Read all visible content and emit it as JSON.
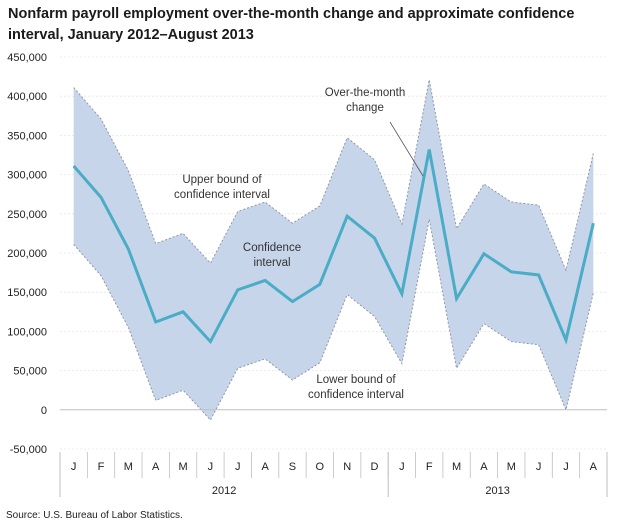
{
  "title": "Nonfarm payroll employment over-the-month change and approximate confidence interval, January 2012–August 2013",
  "source": "Source: U.S. Bureau of Labor Statistics.",
  "colors": {
    "band_fill": "#c6d5ea",
    "band_edge": "#8f98a6",
    "series_line": "#4bacc6",
    "axis": "#bfbfbf",
    "grid": "#e6e6e6"
  },
  "annotations": {
    "over_the_month": [
      "Over-the-month",
      "change"
    ],
    "upper_bound": [
      "Upper bound of",
      "confidence interval"
    ],
    "confidence": [
      "Confidence",
      "interval"
    ],
    "lower_bound": [
      "Lower bound of",
      "confidence interval"
    ]
  },
  "chart_data": {
    "type": "line",
    "categories": [
      "J",
      "F",
      "M",
      "A",
      "M",
      "J",
      "J",
      "A",
      "S",
      "O",
      "N",
      "D",
      "J",
      "F",
      "M",
      "A",
      "M",
      "J",
      "J",
      "A"
    ],
    "year_groups": [
      {
        "label": "2012",
        "count": 12
      },
      {
        "label": "2013",
        "count": 8
      }
    ],
    "series": [
      {
        "name": "Over-the-month change",
        "values": [
          311000,
          271000,
          205000,
          112000,
          125000,
          87000,
          153000,
          165000,
          138000,
          160000,
          247000,
          219000,
          148000,
          332000,
          142000,
          199000,
          176000,
          172000,
          89000,
          238000
        ]
      },
      {
        "name": "Upper bound of confidence interval",
        "values": [
          411000,
          371000,
          305000,
          212000,
          225000,
          187000,
          253000,
          265000,
          238000,
          260000,
          347000,
          319000,
          237000,
          421000,
          231000,
          288000,
          265000,
          261000,
          178000,
          327000
        ]
      },
      {
        "name": "Lower bound of confidence interval",
        "values": [
          211000,
          171000,
          105000,
          12000,
          25000,
          -13000,
          53000,
          65000,
          38000,
          60000,
          147000,
          119000,
          59000,
          243000,
          53000,
          110000,
          87000,
          83000,
          0,
          149000
        ]
      }
    ],
    "ylim": [
      -50000,
      450000
    ],
    "yticks": [
      -50000,
      0,
      50000,
      100000,
      150000,
      200000,
      250000,
      300000,
      350000,
      400000,
      450000
    ],
    "ytick_labels": [
      "-50,000",
      "0",
      "50,000",
      "100,000",
      "150,000",
      "200,000",
      "250,000",
      "300,000",
      "350,000",
      "400,000",
      "450,000"
    ],
    "grid": true
  }
}
